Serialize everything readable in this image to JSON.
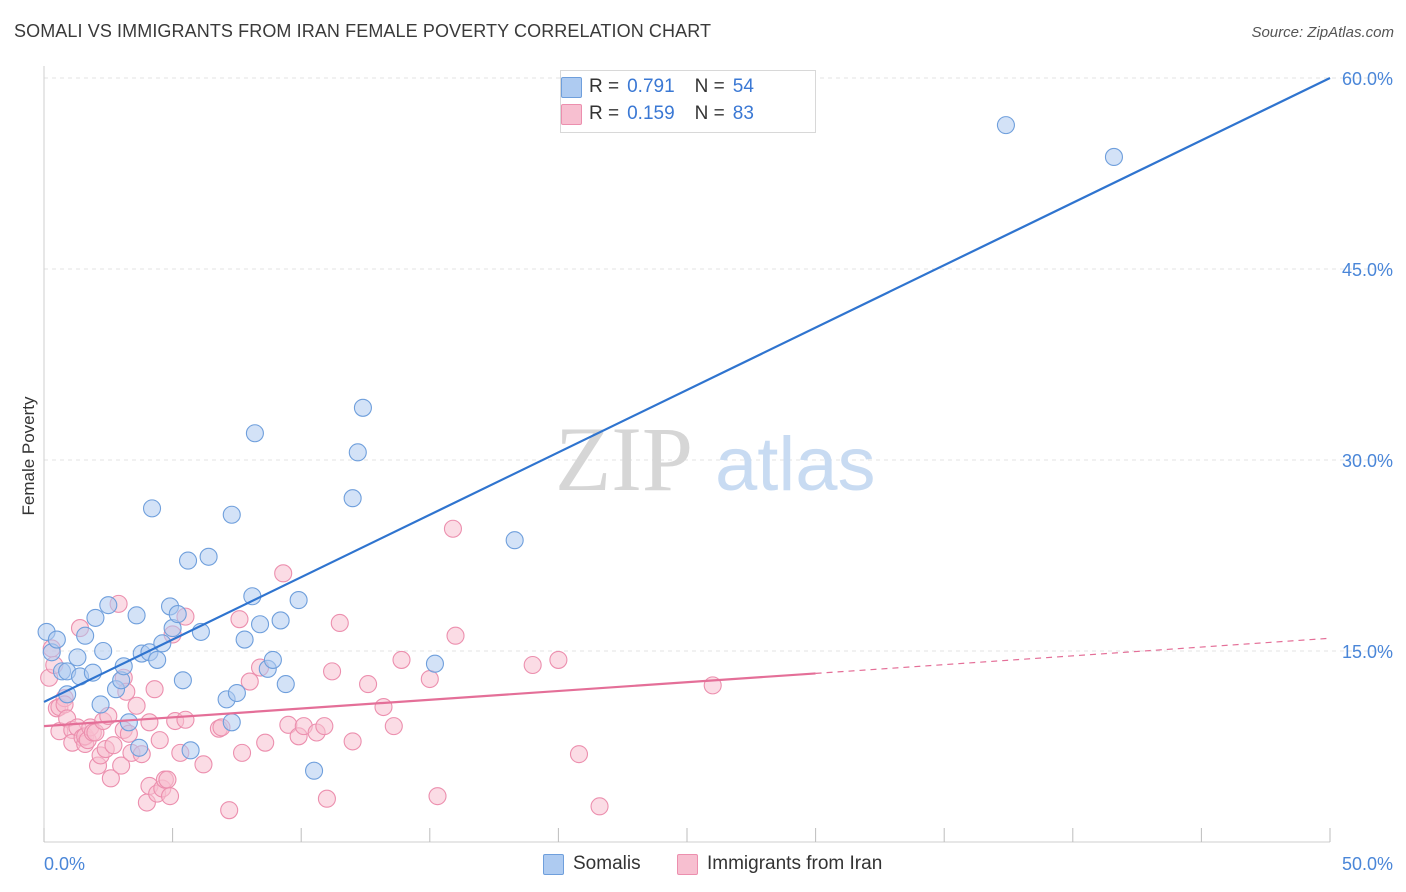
{
  "title": "SOMALI VS IMMIGRANTS FROM IRAN FEMALE POVERTY CORRELATION CHART",
  "source": "Source: ZipAtlas.com",
  "watermark": {
    "zip": "ZIP",
    "atlas": "atlas"
  },
  "legend": {
    "r_label": "R =",
    "n_label": "N =",
    "rows": [
      {
        "r": "0.791",
        "n": "54"
      },
      {
        "r": "0.159",
        "n": "83"
      }
    ]
  },
  "colors": {
    "somali_fill": "#aecbf1",
    "somali_stroke": "#6f9fdc",
    "somali_line": "#2f74cf",
    "iran_fill": "#f7bfd0",
    "iran_stroke": "#ec8fae",
    "iran_line": "#e46f98",
    "tick_text": "#4a86d8",
    "grid": "#e3e3e3"
  },
  "chart_data": {
    "type": "scatter",
    "title": "SOMALI VS IMMIGRANTS FROM IRAN FEMALE POVERTY CORRELATION CHART",
    "xlabel": "",
    "ylabel": "Female Poverty",
    "xlim": [
      0,
      50
    ],
    "ylim": [
      0,
      60
    ],
    "x_tick_labels": [
      "0.0%",
      "50.0%"
    ],
    "y_ticks": [
      15,
      30,
      45,
      60
    ],
    "y_tick_labels": [
      "15.0%",
      "30.0%",
      "45.0%",
      "60.0%"
    ],
    "grid": true,
    "series": [
      {
        "name": "Somalis",
        "r": 0.791,
        "n": 54,
        "trend": {
          "x": [
            0,
            50
          ],
          "y": [
            11.0,
            60.0
          ],
          "dashed_from": null
        },
        "points": [
          [
            0.1,
            16.5
          ],
          [
            0.3,
            14.9
          ],
          [
            0.5,
            15.9
          ],
          [
            0.7,
            13.4
          ],
          [
            0.9,
            11.6
          ],
          [
            0.9,
            13.4
          ],
          [
            1.3,
            14.5
          ],
          [
            1.4,
            13.0
          ],
          [
            1.6,
            16.2
          ],
          [
            1.9,
            13.3
          ],
          [
            2.0,
            17.6
          ],
          [
            2.2,
            10.8
          ],
          [
            2.3,
            15.0
          ],
          [
            2.5,
            18.6
          ],
          [
            2.8,
            12.0
          ],
          [
            3.0,
            12.7
          ],
          [
            3.1,
            13.8
          ],
          [
            3.3,
            9.4
          ],
          [
            3.6,
            17.8
          ],
          [
            3.7,
            7.4
          ],
          [
            3.8,
            14.8
          ],
          [
            4.1,
            14.9
          ],
          [
            4.2,
            26.2
          ],
          [
            4.4,
            14.3
          ],
          [
            4.6,
            15.6
          ],
          [
            4.9,
            18.5
          ],
          [
            5.0,
            16.8
          ],
          [
            5.2,
            17.9
          ],
          [
            5.4,
            12.7
          ],
          [
            5.6,
            22.1
          ],
          [
            5.7,
            7.2
          ],
          [
            6.1,
            16.5
          ],
          [
            6.4,
            22.4
          ],
          [
            7.1,
            11.2
          ],
          [
            7.3,
            9.4
          ],
          [
            7.3,
            25.7
          ],
          [
            7.5,
            11.7
          ],
          [
            7.8,
            15.9
          ],
          [
            8.1,
            19.3
          ],
          [
            8.2,
            32.1
          ],
          [
            8.4,
            17.1
          ],
          [
            8.7,
            13.6
          ],
          [
            8.9,
            14.3
          ],
          [
            9.2,
            17.4
          ],
          [
            9.4,
            12.4
          ],
          [
            9.9,
            19.0
          ],
          [
            10.5,
            5.6
          ],
          [
            12.0,
            27.0
          ],
          [
            12.2,
            30.6
          ],
          [
            12.4,
            34.1
          ],
          [
            15.2,
            14.0
          ],
          [
            18.3,
            23.7
          ],
          [
            37.4,
            56.3
          ],
          [
            41.6,
            53.8
          ]
        ]
      },
      {
        "name": "Immigrants from Iran",
        "r": 0.159,
        "n": 83,
        "trend": {
          "x": [
            0,
            50
          ],
          "y": [
            9.1,
            16.0
          ],
          "dashed_from": 30
        },
        "points": [
          [
            0.2,
            12.9
          ],
          [
            0.3,
            15.2
          ],
          [
            0.4,
            13.9
          ],
          [
            0.5,
            10.5
          ],
          [
            0.6,
            10.6
          ],
          [
            0.6,
            8.7
          ],
          [
            0.8,
            11.3
          ],
          [
            0.8,
            10.8
          ],
          [
            0.9,
            9.7
          ],
          [
            1.1,
            8.8
          ],
          [
            1.1,
            7.8
          ],
          [
            1.3,
            9.0
          ],
          [
            1.4,
            16.8
          ],
          [
            1.5,
            8.2
          ],
          [
            1.6,
            7.7
          ],
          [
            1.6,
            8.3
          ],
          [
            1.7,
            8.0
          ],
          [
            1.8,
            9.0
          ],
          [
            1.9,
            8.6
          ],
          [
            2.0,
            8.6
          ],
          [
            2.1,
            6.0
          ],
          [
            2.2,
            6.8
          ],
          [
            2.3,
            9.5
          ],
          [
            2.4,
            7.3
          ],
          [
            2.5,
            9.9
          ],
          [
            2.6,
            5.0
          ],
          [
            2.7,
            7.6
          ],
          [
            2.9,
            18.7
          ],
          [
            3.0,
            6.0
          ],
          [
            3.1,
            12.9
          ],
          [
            3.1,
            8.8
          ],
          [
            3.2,
            11.8
          ],
          [
            3.3,
            8.5
          ],
          [
            3.4,
            7.0
          ],
          [
            3.6,
            10.7
          ],
          [
            3.8,
            6.9
          ],
          [
            4.0,
            3.1
          ],
          [
            4.1,
            9.4
          ],
          [
            4.1,
            4.4
          ],
          [
            4.3,
            12.0
          ],
          [
            4.4,
            3.8
          ],
          [
            4.5,
            8.0
          ],
          [
            4.6,
            4.2
          ],
          [
            4.7,
            4.9
          ],
          [
            4.8,
            4.9
          ],
          [
            4.9,
            3.6
          ],
          [
            5.0,
            16.3
          ],
          [
            5.1,
            9.5
          ],
          [
            5.3,
            7.0
          ],
          [
            5.5,
            17.7
          ],
          [
            5.5,
            9.6
          ],
          [
            6.2,
            6.1
          ],
          [
            6.8,
            8.9
          ],
          [
            6.9,
            9.0
          ],
          [
            7.2,
            2.5
          ],
          [
            7.6,
            17.5
          ],
          [
            7.7,
            7.0
          ],
          [
            8.0,
            12.6
          ],
          [
            8.4,
            13.7
          ],
          [
            8.6,
            7.8
          ],
          [
            9.3,
            21.1
          ],
          [
            9.5,
            9.2
          ],
          [
            9.9,
            8.3
          ],
          [
            10.1,
            9.1
          ],
          [
            10.6,
            8.6
          ],
          [
            10.9,
            9.1
          ],
          [
            11.0,
            3.4
          ],
          [
            11.2,
            13.4
          ],
          [
            11.5,
            17.2
          ],
          [
            12.0,
            7.9
          ],
          [
            12.6,
            12.4
          ],
          [
            13.2,
            10.6
          ],
          [
            13.6,
            9.1
          ],
          [
            13.9,
            14.3
          ],
          [
            15.0,
            12.8
          ],
          [
            15.3,
            3.6
          ],
          [
            15.9,
            24.6
          ],
          [
            16.0,
            16.2
          ],
          [
            19.0,
            13.9
          ],
          [
            20.0,
            14.3
          ],
          [
            20.8,
            6.9
          ],
          [
            21.6,
            2.8
          ],
          [
            26.0,
            12.3
          ]
        ]
      }
    ]
  }
}
